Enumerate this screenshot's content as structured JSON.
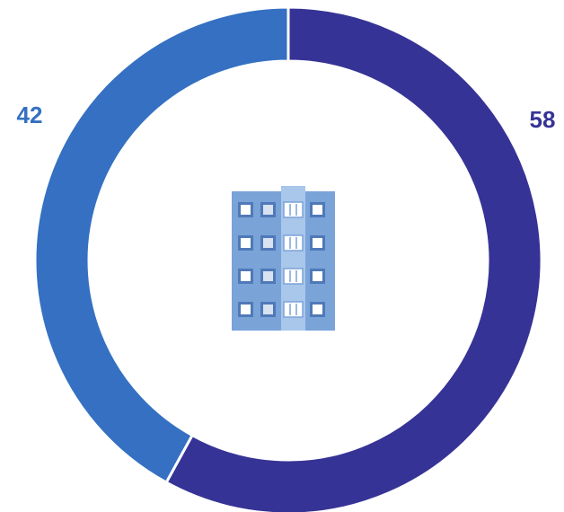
{
  "chart_data": {
    "type": "pie",
    "variant": "donut",
    "slices": [
      {
        "value": 58,
        "label": "58",
        "color": "#363396"
      },
      {
        "value": 42,
        "label": "42",
        "color": "#3570c2"
      }
    ],
    "start": "top",
    "direction": "clockwise",
    "center_icon": "apartment-building-icon",
    "legend": "none",
    "title": "",
    "background": "#ffffff"
  }
}
